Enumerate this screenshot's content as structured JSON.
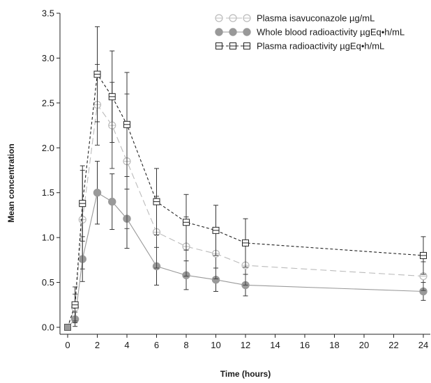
{
  "chart_data": {
    "type": "line",
    "title": "",
    "xlabel": "Time (hours)",
    "ylabel": "Mean concentration",
    "xlim": [
      0,
      24
    ],
    "ylim": [
      0,
      3.5
    ],
    "x_ticks": [
      0,
      2,
      4,
      6,
      8,
      10,
      12,
      14,
      16,
      18,
      20,
      22,
      24
    ],
    "x_tick_labels": [
      "0",
      "2",
      "4",
      "6",
      "8",
      "10",
      "12",
      "14",
      "16",
      "18",
      "20",
      "22",
      "24"
    ],
    "y_ticks": [
      0,
      0.5,
      1.0,
      1.5,
      2.0,
      2.5,
      3.0,
      3.5
    ],
    "y_tick_labels": [
      "0.0",
      "0.5",
      "1.0",
      "1.5",
      "2.0",
      "2.5",
      "3.0",
      "3.5"
    ],
    "grid": false,
    "legend_position": "top-right",
    "series": [
      {
        "name": "Plasma isavuconazole µg/mL",
        "marker": "open-circle",
        "line": "dashed",
        "color": "#bbbbbb",
        "x": [
          0,
          0.5,
          1,
          2,
          3,
          4,
          6,
          8,
          10,
          12,
          24
        ],
        "y": [
          0,
          0.22,
          1.2,
          2.48,
          2.25,
          1.85,
          1.06,
          0.9,
          0.82,
          0.69,
          0.57
        ],
        "err": [
          0,
          0.15,
          0.55,
          0.45,
          0.48,
          0.75,
          0.4,
          0.33,
          0.28,
          0.22,
          0.16
        ]
      },
      {
        "name": "Whole blood radioactivity µgEq•h/mL",
        "marker": "filled-circle",
        "line": "solid",
        "color": "#999999",
        "x": [
          0,
          0.5,
          1,
          2,
          3,
          4,
          6,
          8,
          10,
          12,
          24
        ],
        "y": [
          0,
          0.09,
          0.76,
          1.5,
          1.4,
          1.21,
          0.68,
          0.58,
          0.53,
          0.47,
          0.4
        ],
        "err": [
          0,
          0.08,
          0.25,
          0.35,
          0.31,
          0.33,
          0.21,
          0.16,
          0.13,
          0.12,
          0.1
        ]
      },
      {
        "name": "Plasma radioactivity µgEq•h/mL",
        "marker": "open-square",
        "line": "dashed",
        "color": "#222222",
        "x": [
          0,
          0.5,
          1,
          2,
          3,
          4,
          6,
          8,
          10,
          12,
          24
        ],
        "y": [
          0,
          0.25,
          1.38,
          2.82,
          2.57,
          2.26,
          1.4,
          1.17,
          1.08,
          0.94,
          0.8
        ],
        "err": [
          0,
          0.2,
          0.42,
          0.53,
          0.51,
          0.58,
          0.37,
          0.31,
          0.28,
          0.27,
          0.21
        ]
      }
    ]
  }
}
